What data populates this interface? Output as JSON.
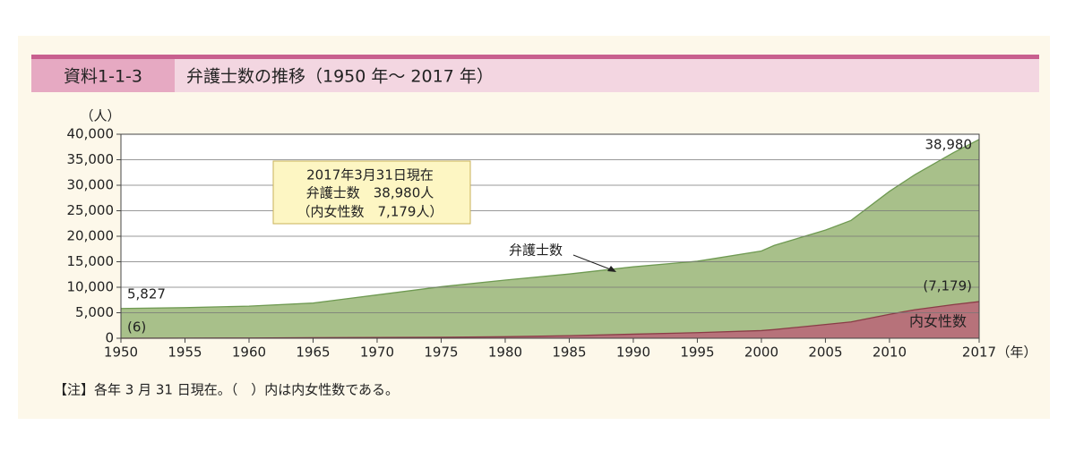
{
  "header": {
    "label": "資料1-1-3",
    "title": "弁護士数の推移（1950 年〜 2017 年）"
  },
  "chart_data": {
    "type": "area",
    "y_unit": "（人）",
    "x_unit": "（年）",
    "x": [
      1950,
      1955,
      1960,
      1965,
      1970,
      1975,
      1980,
      1985,
      1990,
      1995,
      2000,
      2001,
      2005,
      2007,
      2010,
      2012,
      2015,
      2017
    ],
    "series": [
      {
        "name": "弁護士数",
        "color": "#a8c08a",
        "values": [
          5827,
          6000,
          6300,
          6900,
          8500,
          10100,
          11400,
          12600,
          14000,
          15100,
          17100,
          18200,
          21200,
          23100,
          28800,
          32100,
          36400,
          38980
        ],
        "value_labels": [
          "5,827",
          null,
          null,
          null,
          null,
          null,
          null,
          null,
          null,
          null,
          null,
          null,
          null,
          null,
          null,
          null,
          null,
          "38,980"
        ]
      },
      {
        "name": "内女性数",
        "color": "#b7727a",
        "values": [
          6,
          20,
          50,
          100,
          150,
          200,
          300,
          500,
          800,
          1100,
          1500,
          1700,
          2700,
          3200,
          4700,
          5600,
          6600,
          7179
        ],
        "value_labels": [
          "(6)",
          null,
          null,
          null,
          null,
          null,
          null,
          null,
          null,
          null,
          null,
          null,
          null,
          null,
          null,
          null,
          null,
          "(7,179)"
        ]
      }
    ],
    "xlim": [
      1950,
      2017
    ],
    "xticks": [
      1950,
      1955,
      1960,
      1965,
      1970,
      1975,
      1980,
      1985,
      1990,
      1995,
      2000,
      2005,
      2010,
      2017
    ],
    "ylim": [
      0,
      40000
    ],
    "yticks": [
      0,
      {
        "value": 5000,
        "label": "5,000"
      },
      {
        "value": 10000,
        "label": "10,000"
      },
      {
        "value": 15000,
        "label": "15,000"
      },
      {
        "value": 20000,
        "label": "20,000"
      },
      {
        "value": 25000,
        "label": "25,000"
      },
      {
        "value": 30000,
        "label": "30,000"
      },
      {
        "value": 35000,
        "label": "35,000"
      },
      {
        "value": 40000,
        "label": "40,000"
      }
    ],
    "grid": true,
    "annotation": [
      "2017年3月31日現在",
      "弁護士数　38,980人",
      "（内女性数　7,179人）"
    ]
  },
  "note": "【注】各年 3 月 31 日現在。（　）内は内女性数である。"
}
